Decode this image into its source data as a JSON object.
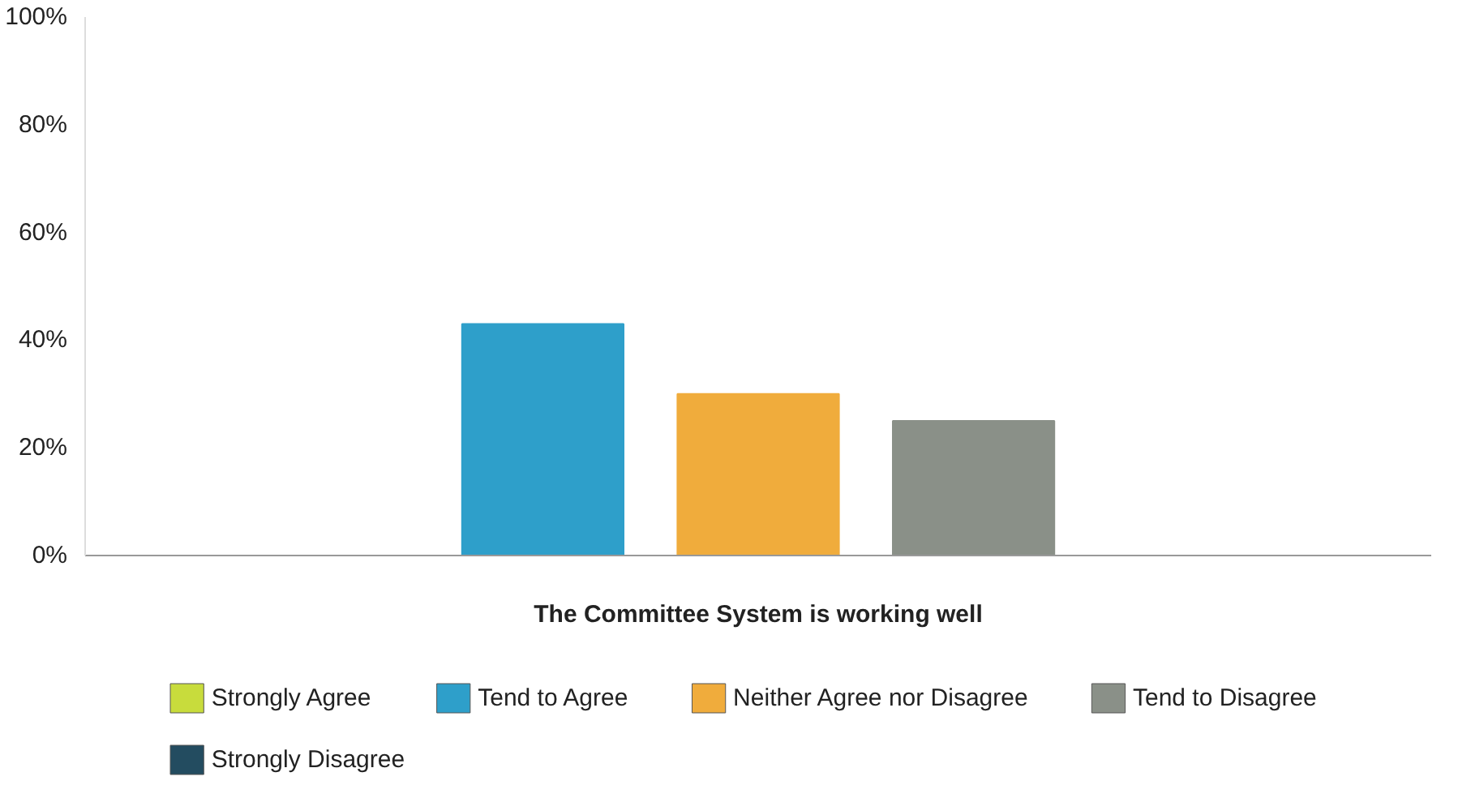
{
  "chart_data": {
    "type": "bar",
    "categories": [
      "The Committee System is working well"
    ],
    "series": [
      {
        "name": "Strongly Agree",
        "color": "#c8dc3c",
        "values": [
          0
        ]
      },
      {
        "name": "Tend to Agree",
        "color": "#2e9fca",
        "values": [
          43
        ]
      },
      {
        "name": "Neither Agree nor Disagree",
        "color": "#f0ac3c",
        "values": [
          30
        ]
      },
      {
        "name": "Tend to Disagree",
        "color": "#8a9088",
        "values": [
          25
        ]
      },
      {
        "name": "Strongly Disagree",
        "color": "#234c60",
        "values": [
          0
        ]
      }
    ],
    "ylim": [
      0,
      100
    ],
    "yticks": [
      {
        "value": 0,
        "label": "0%"
      },
      {
        "value": 20,
        "label": "20%"
      },
      {
        "value": 40,
        "label": "40%"
      },
      {
        "value": 60,
        "label": "60%"
      },
      {
        "value": 80,
        "label": "80%"
      },
      {
        "value": 100,
        "label": "100%"
      }
    ],
    "legend": "bottom"
  }
}
